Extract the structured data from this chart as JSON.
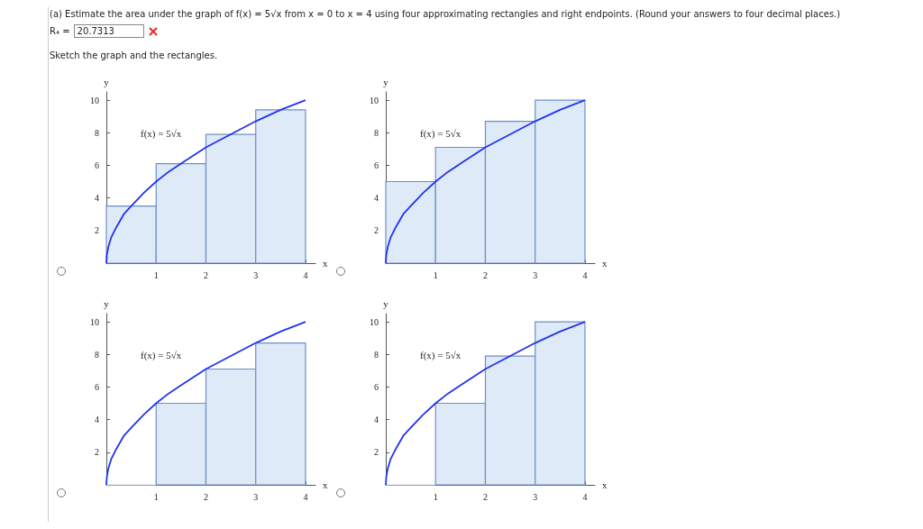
{
  "chart_data": [
    {
      "type": "other",
      "title": "(a) Estimate the area under the graph of f(x) = 5√x from x = 0 to x = 4 using four approximating rectangles and right endpoints. (Round your answers to four decimal places.)",
      "annotations": [
        "R₄ =",
        "20.7313",
        "Sketch the graph and the rectangles."
      ]
    },
    {
      "type": "histogram",
      "xlabel": "x",
      "ylabel": "y",
      "xlim": [
        0,
        4.2
      ],
      "ylim": [
        0,
        10.5
      ],
      "xticks": [
        1,
        2,
        3,
        4
      ],
      "yticks": [
        2,
        4,
        6,
        8,
        10
      ],
      "grid": false,
      "annotations": [
        "f(x) = 5√x"
      ],
      "series": [
        {
          "type": "histogram",
          "color": "#deeaf8",
          "bins": [
            0,
            1,
            2,
            3,
            4
          ],
          "values": [
            3.5,
            6.1,
            7.9,
            9.4
          ]
        },
        {
          "type": "line",
          "color": "#2233ee",
          "x": [
            0,
            0.01,
            0.04,
            0.1,
            0.2,
            0.35,
            0.5,
            0.75,
            1,
            1.25,
            1.5,
            1.75,
            2,
            2.5,
            3,
            3.5,
            4
          ],
          "values": [
            0,
            0.5,
            1.0,
            1.6,
            2.2,
            3.0,
            3.5,
            4.3,
            5,
            5.6,
            6.1,
            6.6,
            7.1,
            7.9,
            8.7,
            9.4,
            10
          ]
        }
      ]
    },
    {
      "type": "histogram",
      "xlabel": "x",
      "ylabel": "y",
      "xlim": [
        0,
        4.2
      ],
      "ylim": [
        0,
        10.5
      ],
      "xticks": [
        1,
        2,
        3,
        4
      ],
      "yticks": [
        2,
        4,
        6,
        8,
        10
      ],
      "grid": false,
      "annotations": [
        "f(x) = 5√x"
      ],
      "series": [
        {
          "type": "histogram",
          "color": "#deeaf8",
          "bins": [
            0,
            1,
            2,
            3,
            4
          ],
          "values": [
            5,
            7.1,
            8.7,
            10
          ]
        },
        {
          "type": "line",
          "color": "#2233ee",
          "x": [
            0,
            0.01,
            0.04,
            0.1,
            0.2,
            0.35,
            0.5,
            0.75,
            1,
            1.25,
            1.5,
            1.75,
            2,
            2.5,
            3,
            3.5,
            4
          ],
          "values": [
            0,
            0.5,
            1.0,
            1.6,
            2.2,
            3.0,
            3.5,
            4.3,
            5,
            5.6,
            6.1,
            6.6,
            7.1,
            7.9,
            8.7,
            9.4,
            10
          ]
        }
      ]
    },
    {
      "type": "histogram",
      "xlabel": "x",
      "ylabel": "y",
      "xlim": [
        0,
        4.2
      ],
      "ylim": [
        0,
        10.5
      ],
      "xticks": [
        1,
        2,
        3,
        4
      ],
      "yticks": [
        2,
        4,
        6,
        8,
        10
      ],
      "grid": false,
      "annotations": [
        "f(x) = 5√x"
      ],
      "series": [
        {
          "type": "histogram",
          "color": "#deeaf8",
          "bins": [
            0,
            1,
            2,
            3,
            4
          ],
          "values": [
            0,
            5,
            7.1,
            8.7
          ]
        },
        {
          "type": "line",
          "color": "#2233ee",
          "x": [
            0,
            0.01,
            0.04,
            0.1,
            0.2,
            0.35,
            0.5,
            0.75,
            1,
            1.25,
            1.5,
            1.75,
            2,
            2.5,
            3,
            3.5,
            4
          ],
          "values": [
            0,
            0.5,
            1.0,
            1.6,
            2.2,
            3.0,
            3.5,
            4.3,
            5,
            5.6,
            6.1,
            6.6,
            7.1,
            7.9,
            8.7,
            9.4,
            10
          ]
        }
      ]
    },
    {
      "type": "histogram",
      "xlabel": "x",
      "ylabel": "y",
      "xlim": [
        0,
        4.2
      ],
      "ylim": [
        0,
        10.5
      ],
      "xticks": [
        1,
        2,
        3,
        4
      ],
      "yticks": [
        2,
        4,
        6,
        8,
        10
      ],
      "grid": false,
      "annotations": [
        "f(x) = 5√x"
      ],
      "series": [
        {
          "type": "histogram",
          "color": "#deeaf8",
          "bins": [
            0,
            1,
            2,
            3,
            4
          ],
          "values": [
            0,
            5,
            7.9,
            10
          ]
        },
        {
          "type": "line",
          "color": "#2233ee",
          "x": [
            0,
            0.01,
            0.04,
            0.1,
            0.2,
            0.35,
            0.5,
            0.75,
            1,
            1.25,
            1.5,
            1.75,
            2,
            2.5,
            3,
            3.5,
            4
          ],
          "values": [
            0,
            0.5,
            1.0,
            1.6,
            2.2,
            3.0,
            3.5,
            4.3,
            5,
            5.6,
            6.1,
            6.6,
            7.1,
            7.9,
            8.7,
            9.4,
            10
          ]
        }
      ]
    }
  ]
}
